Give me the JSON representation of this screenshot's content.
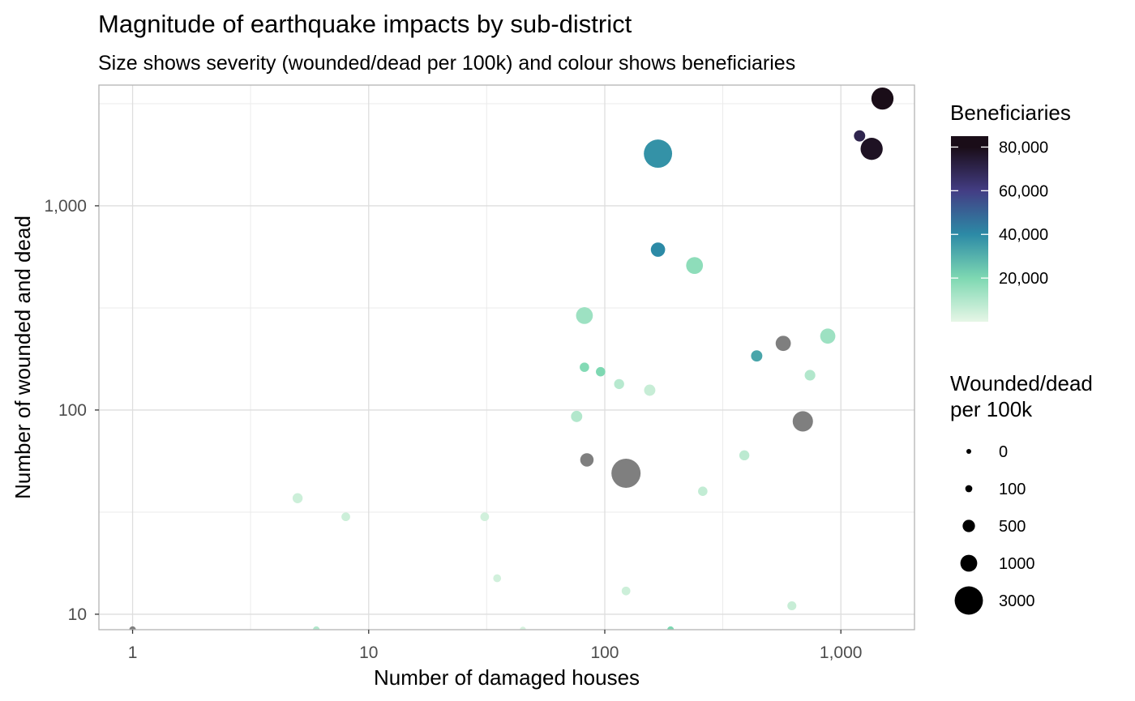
{
  "chart_data": {
    "type": "scatter",
    "title": "Magnitude of earthquake impacts by sub-district",
    "subtitle": "Size shows severity (wounded/dead per 100k) and colour shows beneficiaries",
    "xlabel": "Number of damaged houses",
    "ylabel": "Number of wounded and dead",
    "x_scale": "log10",
    "y_scale": "log10",
    "xlim": [
      0.72,
      2050
    ],
    "ylim": [
      8.4,
      3900
    ],
    "x_ticks": [
      {
        "value": 1,
        "label": "1"
      },
      {
        "value": 10,
        "label": "10"
      },
      {
        "value": 100,
        "label": "100"
      },
      {
        "value": 1000,
        "label": "1,000"
      }
    ],
    "x_minor": [
      3.16,
      31.6,
      316
    ],
    "y_ticks": [
      {
        "value": 10,
        "label": "10"
      },
      {
        "value": 100,
        "label": "100"
      },
      {
        "value": 1000,
        "label": "1,000"
      }
    ],
    "y_minor": [
      31.6,
      316,
      3162
    ],
    "grid": true,
    "missing_color": "#7f7f7f",
    "color_legend": {
      "title": "Beneficiaries",
      "min": 0,
      "max": 85000,
      "ticks": [
        {
          "value": 20000,
          "label": "20,000"
        },
        {
          "value": 40000,
          "label": "40,000"
        },
        {
          "value": 60000,
          "label": "60,000"
        },
        {
          "value": 80000,
          "label": "80,000"
        }
      ],
      "stops": [
        {
          "value": 0,
          "color": "#e6f6e6"
        },
        {
          "value": 20000,
          "color": "#7ed8b2"
        },
        {
          "value": 40000,
          "color": "#2c8aa6"
        },
        {
          "value": 60000,
          "color": "#433d84"
        },
        {
          "value": 80000,
          "color": "#1a0d18"
        }
      ]
    },
    "size_legend": {
      "title_lines": [
        "Wounded/dead",
        "per 100k"
      ],
      "entries": [
        {
          "value": 0,
          "label": "0"
        },
        {
          "value": 100,
          "label": "100"
        },
        {
          "value": 500,
          "label": "500"
        },
        {
          "value": 1000,
          "label": "1000"
        },
        {
          "value": 3000,
          "label": "3000"
        }
      ]
    },
    "points": [
      {
        "x": 1500,
        "y": 3350,
        "severity": 1800,
        "beneficiaries": 85000
      },
      {
        "x": 1200,
        "y": 2200,
        "severity": 400,
        "beneficiaries": 70000
      },
      {
        "x": 1350,
        "y": 1900,
        "severity": 1800,
        "beneficiaries": 78000
      },
      {
        "x": 168,
        "y": 1800,
        "severity": 3000,
        "beneficiaries": 38000
      },
      {
        "x": 168,
        "y": 610,
        "severity": 700,
        "beneficiaries": 40000
      },
      {
        "x": 240,
        "y": 510,
        "severity": 1000,
        "beneficiaries": 17000
      },
      {
        "x": 82,
        "y": 290,
        "severity": 1000,
        "beneficiaries": 14000
      },
      {
        "x": 880,
        "y": 230,
        "severity": 800,
        "beneficiaries": 14000
      },
      {
        "x": 570,
        "y": 212,
        "severity": 800,
        "beneficiaries": null
      },
      {
        "x": 440,
        "y": 184,
        "severity": 400,
        "beneficiaries": 33000
      },
      {
        "x": 82,
        "y": 162,
        "severity": 250,
        "beneficiaries": 19000
      },
      {
        "x": 96,
        "y": 154,
        "severity": 250,
        "beneficiaries": 20000
      },
      {
        "x": 740,
        "y": 148,
        "severity": 350,
        "beneficiaries": 10000
      },
      {
        "x": 115,
        "y": 134,
        "severity": 300,
        "beneficiaries": 9000
      },
      {
        "x": 155,
        "y": 125,
        "severity": 400,
        "beneficiaries": 6000
      },
      {
        "x": 76,
        "y": 93,
        "severity": 400,
        "beneficiaries": 10000
      },
      {
        "x": 690,
        "y": 88,
        "severity": 1500,
        "beneficiaries": null
      },
      {
        "x": 84,
        "y": 57,
        "severity": 600,
        "beneficiaries": null
      },
      {
        "x": 390,
        "y": 60,
        "severity": 300,
        "beneficiaries": 8000
      },
      {
        "x": 123,
        "y": 49,
        "severity": 3200,
        "beneficiaries": null
      },
      {
        "x": 260,
        "y": 40,
        "severity": 250,
        "beneficiaries": 7000
      },
      {
        "x": 5,
        "y": 37,
        "severity": 300,
        "beneficiaries": 5000
      },
      {
        "x": 8,
        "y": 30,
        "severity": 200,
        "beneficiaries": 5000
      },
      {
        "x": 31,
        "y": 30,
        "severity": 200,
        "beneficiaries": 4000
      },
      {
        "x": 35,
        "y": 15,
        "severity": 150,
        "beneficiaries": 4000
      },
      {
        "x": 123,
        "y": 13,
        "severity": 200,
        "beneficiaries": 5000
      },
      {
        "x": 620,
        "y": 11,
        "severity": 220,
        "beneficiaries": 6000
      },
      {
        "x": 1,
        "y": 8.4,
        "severity": 80,
        "beneficiaries": null
      },
      {
        "x": 6,
        "y": 8.4,
        "severity": 80,
        "beneficiaries": 10000
      },
      {
        "x": 45,
        "y": 8.4,
        "severity": 50,
        "beneficiaries": 3000
      },
      {
        "x": 190,
        "y": 8.4,
        "severity": 80,
        "beneficiaries": 20000
      }
    ]
  }
}
